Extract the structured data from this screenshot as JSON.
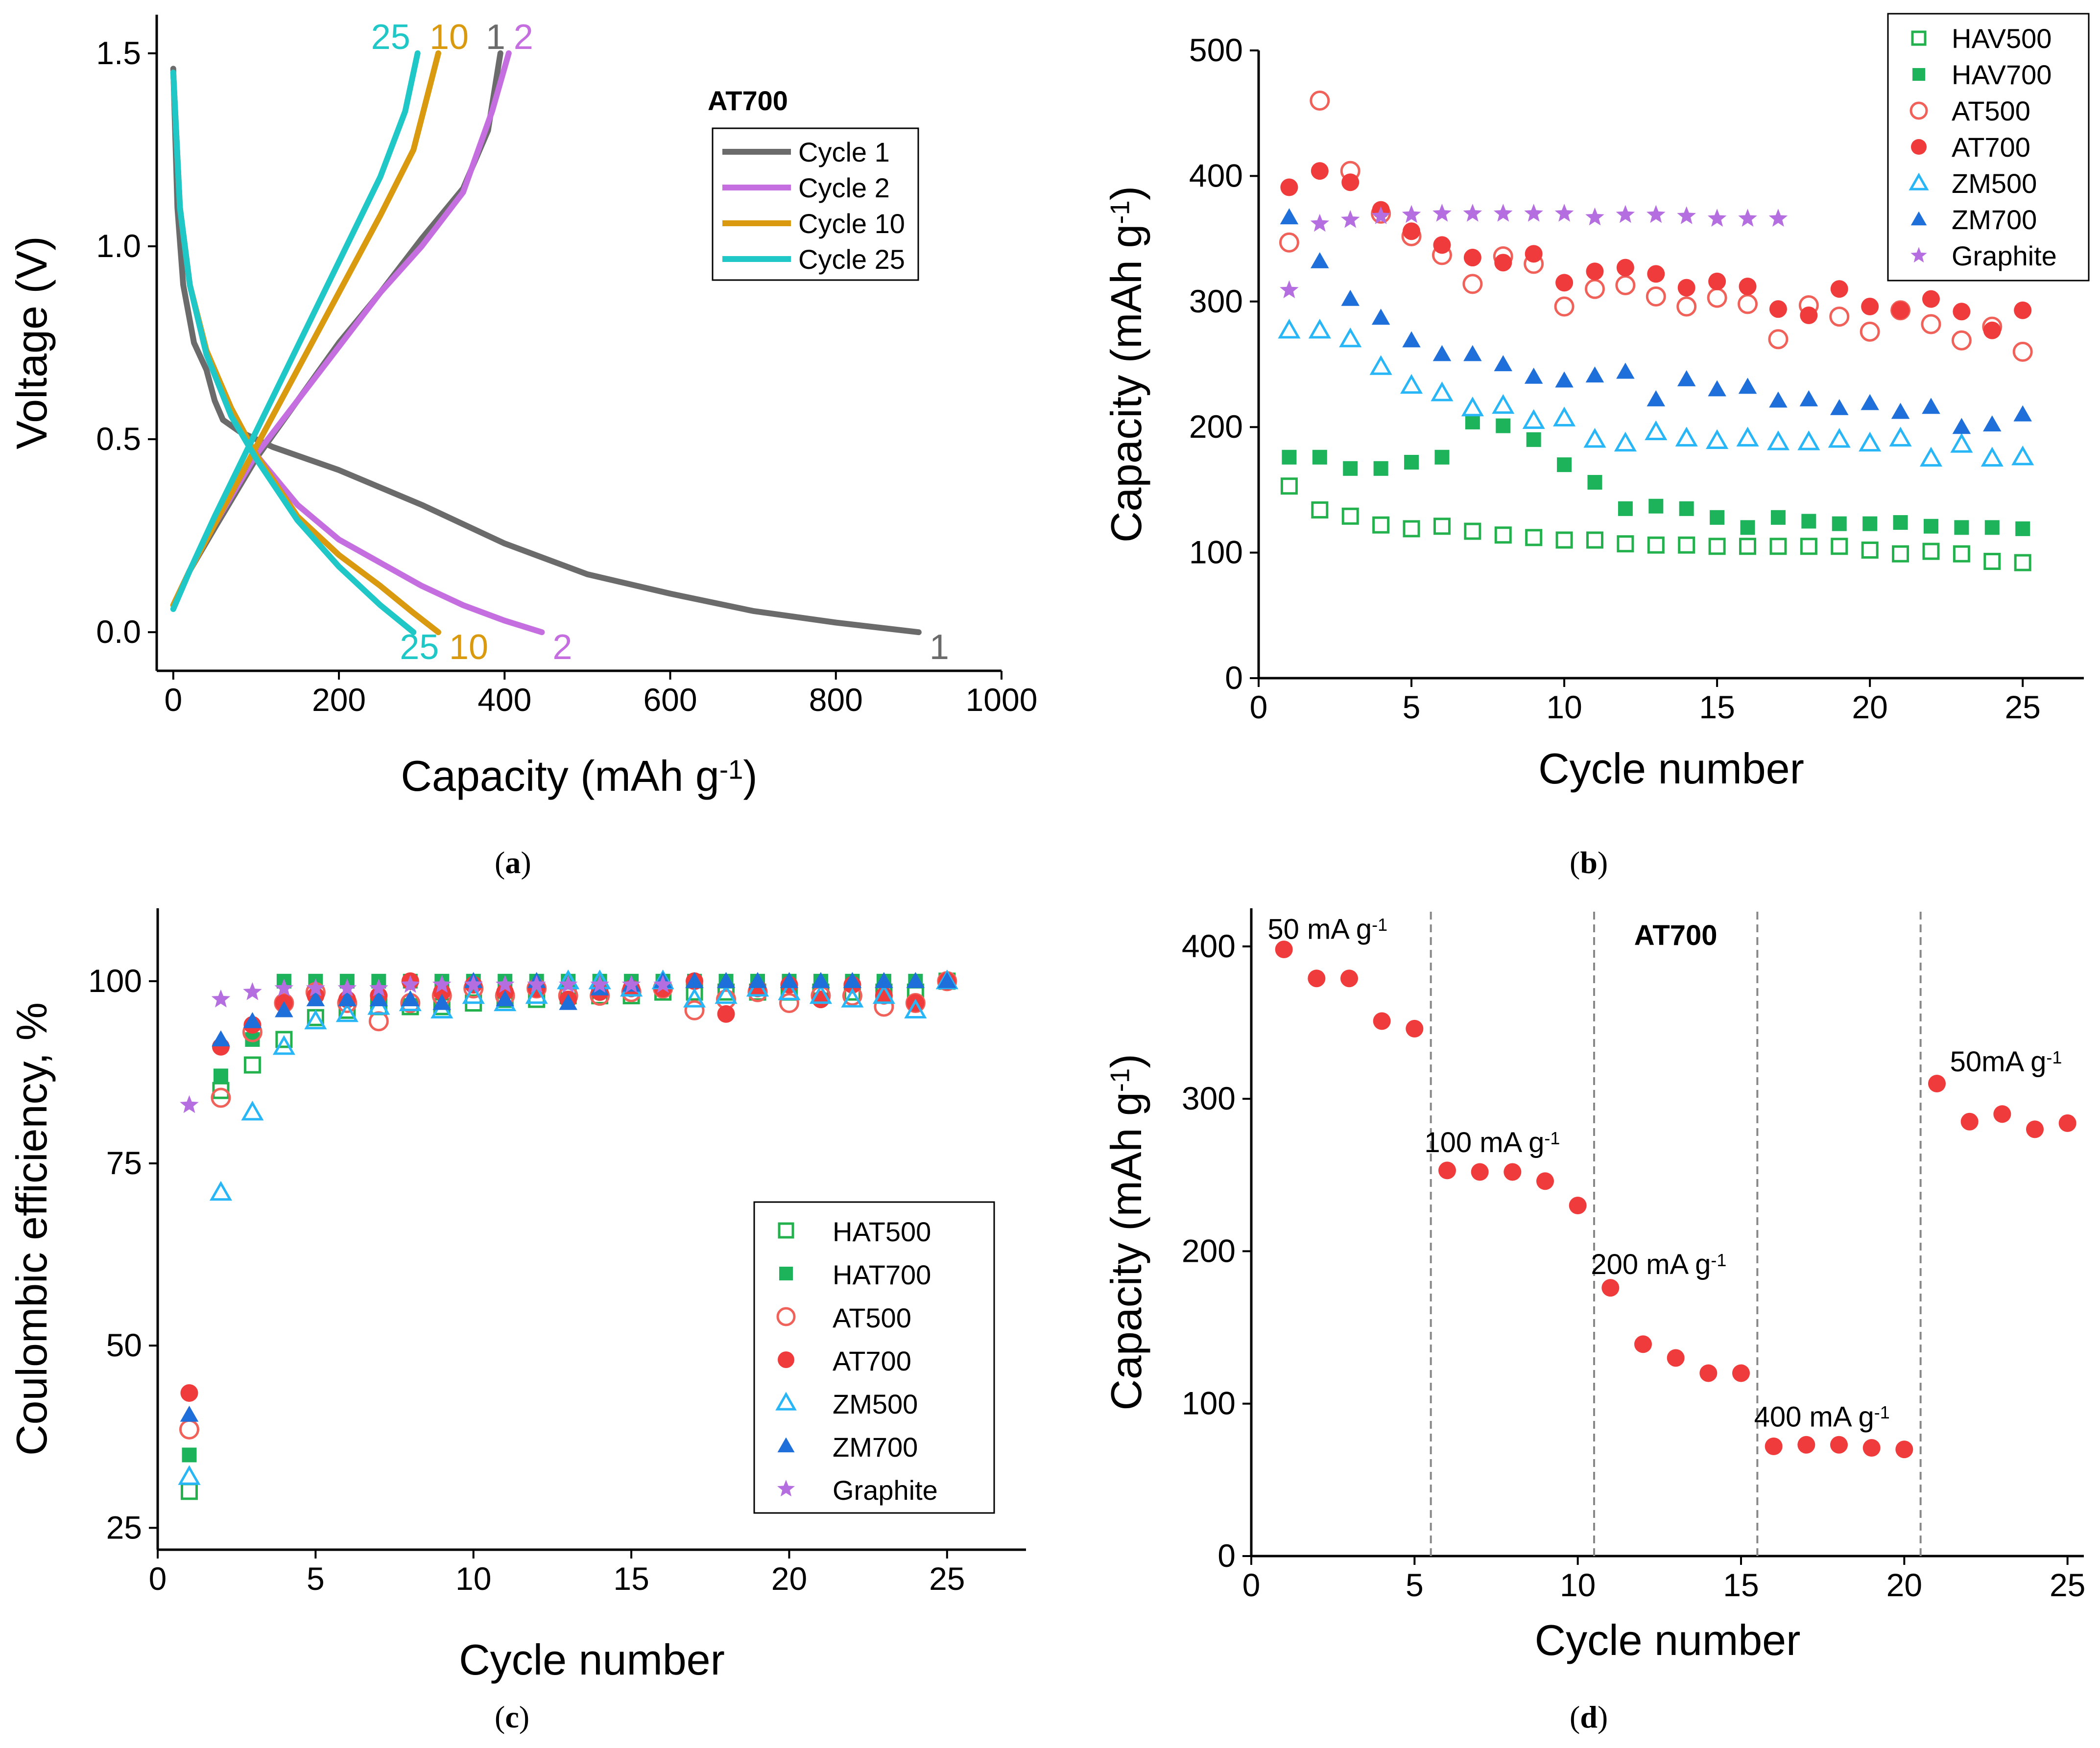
{
  "colors": {
    "HAV500": "#22b14c",
    "HAV700": "#1db35b",
    "AT500": "#f0615a",
    "AT700": "#ef3b3b",
    "ZM500": "#29b6f6",
    "ZM700": "#1e6fd9",
    "Graphite": "#b56ee0",
    "cycle1": "#6b6b6b",
    "cycle2": "#c46ee0",
    "cycle10": "#d99a0f",
    "cycle25": "#1fc7c7"
  },
  "panel_labels": {
    "a": "a",
    "b": "b",
    "c": "c",
    "d": "d"
  },
  "chart_data": [
    {
      "id": "a",
      "type": "line",
      "title": "AT700",
      "xlabel": "Capacity (mAh g",
      "xlabel_sup": "-1",
      "xlabel_close": ")",
      "ylabel": "Voltage (V)",
      "xlim": [
        -20,
        1000
      ],
      "ylim": [
        -0.1,
        1.6
      ],
      "xticks": [
        0,
        200,
        400,
        600,
        800,
        1000
      ],
      "yticks": [
        0.0,
        0.5,
        1.0,
        1.5
      ],
      "ytick_labels": [
        "0.0",
        "0.5",
        "1.0",
        "1.5"
      ],
      "series": [
        {
          "name": "Cycle 1",
          "color_key": "cycle1",
          "end_label": "1",
          "discharge": [
            [
              0,
              1.46
            ],
            [
              5,
              1.1
            ],
            [
              12,
              0.9
            ],
            [
              25,
              0.75
            ],
            [
              40,
              0.68
            ],
            [
              50,
              0.6
            ],
            [
              60,
              0.55
            ],
            [
              80,
              0.52
            ],
            [
              120,
              0.48
            ],
            [
              200,
              0.42
            ],
            [
              300,
              0.33
            ],
            [
              400,
              0.23
            ],
            [
              500,
              0.15
            ],
            [
              600,
              0.1
            ],
            [
              700,
              0.055
            ],
            [
              800,
              0.025
            ],
            [
              900,
              0.0
            ]
          ],
          "charge": [
            [
              0,
              0.07
            ],
            [
              20,
              0.16
            ],
            [
              50,
              0.27
            ],
            [
              100,
              0.45
            ],
            [
              150,
              0.6
            ],
            [
              200,
              0.75
            ],
            [
              250,
              0.88
            ],
            [
              300,
              1.02
            ],
            [
              350,
              1.15
            ],
            [
              380,
              1.3
            ],
            [
              395,
              1.5
            ]
          ]
        },
        {
          "name": "Cycle 2",
          "color_key": "cycle2",
          "end_label": "2",
          "discharge": [
            [
              0,
              1.45
            ],
            [
              8,
              1.1
            ],
            [
              20,
              0.9
            ],
            [
              40,
              0.72
            ],
            [
              70,
              0.56
            ],
            [
              100,
              0.46
            ],
            [
              150,
              0.33
            ],
            [
              200,
              0.24
            ],
            [
              250,
              0.18
            ],
            [
              300,
              0.12
            ],
            [
              350,
              0.07
            ],
            [
              400,
              0.03
            ],
            [
              445,
              0.0
            ]
          ],
          "charge": [
            [
              0,
              0.07
            ],
            [
              20,
              0.16
            ],
            [
              50,
              0.28
            ],
            [
              100,
              0.46
            ],
            [
              150,
              0.6
            ],
            [
              200,
              0.74
            ],
            [
              250,
              0.88
            ],
            [
              300,
              1.0
            ],
            [
              350,
              1.14
            ],
            [
              385,
              1.35
            ],
            [
              405,
              1.5
            ]
          ]
        },
        {
          "name": "Cycle 10",
          "color_key": "cycle10",
          "end_label": "10",
          "discharge": [
            [
              0,
              1.45
            ],
            [
              8,
              1.1
            ],
            [
              20,
              0.9
            ],
            [
              40,
              0.73
            ],
            [
              70,
              0.58
            ],
            [
              100,
              0.46
            ],
            [
              150,
              0.3
            ],
            [
              200,
              0.2
            ],
            [
              250,
              0.12
            ],
            [
              290,
              0.05
            ],
            [
              320,
              0.0
            ]
          ],
          "charge": [
            [
              0,
              0.07
            ],
            [
              20,
              0.16
            ],
            [
              50,
              0.28
            ],
            [
              100,
              0.48
            ],
            [
              150,
              0.68
            ],
            [
              200,
              0.88
            ],
            [
              250,
              1.08
            ],
            [
              290,
              1.25
            ],
            [
              320,
              1.5
            ]
          ]
        },
        {
          "name": "Cycle 25",
          "color_key": "cycle25",
          "end_label": "25",
          "discharge": [
            [
              0,
              1.45
            ],
            [
              8,
              1.1
            ],
            [
              20,
              0.9
            ],
            [
              40,
              0.72
            ],
            [
              70,
              0.56
            ],
            [
              100,
              0.45
            ],
            [
              150,
              0.29
            ],
            [
              200,
              0.17
            ],
            [
              250,
              0.07
            ],
            [
              290,
              0.0
            ]
          ],
          "charge": [
            [
              0,
              0.06
            ],
            [
              20,
              0.16
            ],
            [
              50,
              0.3
            ],
            [
              100,
              0.52
            ],
            [
              150,
              0.74
            ],
            [
              200,
              0.96
            ],
            [
              250,
              1.18
            ],
            [
              280,
              1.35
            ],
            [
              295,
              1.5
            ]
          ]
        }
      ]
    },
    {
      "id": "b",
      "type": "scatter",
      "xlabel": "Cycle number",
      "ylabel": "Capacity (mAh g",
      "ylabel_sup": "-1",
      "ylabel_close": ")",
      "xlim": [
        0,
        27
      ],
      "ylim": [
        0,
        500
      ],
      "xticks": [
        0,
        5,
        10,
        15,
        20,
        25
      ],
      "yticks": [
        0,
        100,
        200,
        300,
        400,
        500
      ],
      "series": [
        {
          "name": "HAV500",
          "marker": "square-open",
          "color_key": "HAV500",
          "values": [
            153,
            134,
            129,
            122,
            119,
            121,
            117,
            114,
            112,
            110,
            110,
            107,
            106,
            106,
            105,
            105,
            105,
            105,
            105,
            102,
            99,
            101,
            99,
            93,
            92
          ]
        },
        {
          "name": "HAV700",
          "marker": "square",
          "color_key": "HAV700",
          "values": [
            176,
            176,
            167,
            167,
            172,
            176,
            204,
            201,
            190,
            170,
            156,
            135,
            137,
            135,
            128,
            120,
            128,
            125,
            123,
            123,
            124,
            121,
            120,
            120,
            119
          ]
        },
        {
          "name": "AT500",
          "marker": "circle-open",
          "color_key": "AT500",
          "values": [
            347,
            460,
            404,
            370,
            352,
            337,
            314,
            336,
            330,
            296,
            310,
            313,
            304,
            296,
            303,
            298,
            270,
            297,
            288,
            276,
            293,
            282,
            269,
            280,
            260
          ]
        },
        {
          "name": "AT700",
          "marker": "circle",
          "color_key": "AT700",
          "values": [
            391,
            404,
            395,
            373,
            356,
            345,
            335,
            331,
            338,
            315,
            324,
            327,
            322,
            311,
            316,
            312,
            294,
            289,
            310,
            296,
            293,
            302,
            292,
            277,
            293
          ]
        },
        {
          "name": "ZM500",
          "marker": "triangle-open",
          "color_key": "ZM500",
          "values": [
            277,
            277,
            270,
            248,
            233,
            227,
            215,
            217,
            205,
            207,
            190,
            187,
            196,
            191,
            189,
            191,
            188,
            188,
            190,
            187,
            191,
            175,
            186,
            175,
            176
          ]
        },
        {
          "name": "ZM700",
          "marker": "triangle",
          "color_key": "ZM700",
          "values": [
            367,
            332,
            302,
            287,
            269,
            258,
            258,
            250,
            240,
            237,
            241,
            244,
            222,
            238,
            230,
            232,
            221,
            222,
            215,
            219,
            212,
            216,
            200,
            202,
            210
          ]
        },
        {
          "name": "Graphite",
          "marker": "star",
          "color_key": "Graphite",
          "values": [
            309,
            362,
            365,
            368,
            369,
            370,
            370,
            370,
            370,
            370,
            367,
            369,
            369,
            368,
            366,
            366,
            366
          ]
        }
      ]
    },
    {
      "id": "c",
      "type": "scatter",
      "xlabel": "Cycle number",
      "ylabel": "Coulombic efficiency, %",
      "xlim": [
        0,
        27.5
      ],
      "ylim": [
        22,
        110
      ],
      "xticks": [
        0,
        5,
        10,
        15,
        20,
        25
      ],
      "yticks": [
        25,
        50,
        75,
        100
      ],
      "series": [
        {
          "name": "HAT500",
          "marker": "square-open",
          "color_key": "HAV500",
          "values": [
            30,
            85,
            88.5,
            92,
            95,
            96,
            96.5,
            96.5,
            96.5,
            97,
            97.5,
            97.5,
            98,
            98,
            98,
            98.5,
            98.5,
            98.5,
            98.5,
            98.5,
            98.5,
            98.5,
            98.5,
            98.5,
            100
          ]
        },
        {
          "name": "HAT700",
          "marker": "square",
          "color_key": "HAV700",
          "values": [
            35,
            87,
            92,
            100,
            100,
            100,
            100,
            100,
            100,
            100,
            100,
            100,
            100,
            100,
            100,
            100,
            100,
            100,
            100,
            100,
            100,
            100,
            100,
            100,
            100
          ]
        },
        {
          "name": "AT500",
          "marker": "circle-open",
          "color_key": "AT500",
          "values": [
            38.5,
            84,
            93,
            97,
            98.5,
            97,
            94.5,
            97,
            98,
            99,
            98,
            99,
            98,
            98,
            98.5,
            99,
            96,
            97.5,
            98.5,
            97,
            98,
            98,
            96.5,
            97,
            100
          ]
        },
        {
          "name": "AT700",
          "marker": "circle",
          "color_key": "AT700",
          "values": [
            43.5,
            91,
            94,
            97,
            98,
            97.5,
            98,
            100,
            98.5,
            99.5,
            98.5,
            99,
            97.5,
            98.5,
            99,
            99,
            100,
            95.5,
            99,
            99.5,
            97.5,
            99.5,
            98,
            97,
            100
          ]
        },
        {
          "name": "ZM500",
          "marker": "triangle-open",
          "color_key": "ZM500",
          "values": [
            32,
            71,
            82,
            91,
            94.5,
            95.5,
            96.5,
            97,
            96,
            98,
            97,
            98,
            100,
            100,
            99,
            100,
            97.5,
            98,
            99,
            98.5,
            98,
            97.5,
            98,
            96,
            100
          ]
        },
        {
          "name": "ZM700",
          "marker": "triangle",
          "color_key": "ZM700",
          "values": [
            40.5,
            92,
            94.5,
            96,
            97.5,
            97.5,
            97.5,
            97.5,
            97,
            100,
            97.5,
            100,
            97,
            99,
            99.5,
            100,
            100,
            100,
            100,
            100,
            100,
            100,
            100,
            100,
            100
          ]
        },
        {
          "name": "Graphite",
          "marker": "star",
          "color_key": "Graphite",
          "values": [
            83,
            97.5,
            98.5,
            99,
            99,
            99,
            99,
            99.5,
            99.5,
            99.5,
            99.5,
            99.5,
            99.5,
            99.5,
            99.5,
            99.5
          ]
        }
      ]
    },
    {
      "id": "d",
      "type": "scatter",
      "title": "AT700",
      "xlabel": "Cycle number",
      "ylabel": "Capacity (mAh g",
      "ylabel_sup": "-1",
      "ylabel_close": ")",
      "xlim": [
        0,
        25.5
      ],
      "ylim": [
        0,
        425
      ],
      "xticks": [
        0,
        5,
        10,
        15,
        20,
        25
      ],
      "yticks": [
        0,
        100,
        200,
        300,
        400
      ],
      "dividers": [
        5.5,
        10.5,
        15.5,
        20.5
      ],
      "series": [
        {
          "name": "AT700",
          "marker": "circle",
          "color_key": "AT700",
          "values": [
            398,
            379,
            379,
            351,
            346,
            253,
            252,
            252,
            246,
            230,
            176,
            139,
            130,
            120,
            120,
            72,
            73,
            73,
            71,
            70,
            310,
            285,
            290,
            280,
            284
          ]
        }
      ],
      "annotations": [
        {
          "text": "50 mA g",
          "sup": "-1",
          "x": 0.5,
          "y": 405
        },
        {
          "text": "100 mA g",
          "sup": "-1",
          "x": 5.3,
          "y": 265
        },
        {
          "text": "200 mA g",
          "sup": "-1",
          "x": 10.4,
          "y": 185
        },
        {
          "text": "400 mA g",
          "sup": "-1",
          "x": 15.4,
          "y": 85
        },
        {
          "text": "50mA g",
          "sup": "-1",
          "x": 21.4,
          "y": 318
        }
      ]
    }
  ]
}
